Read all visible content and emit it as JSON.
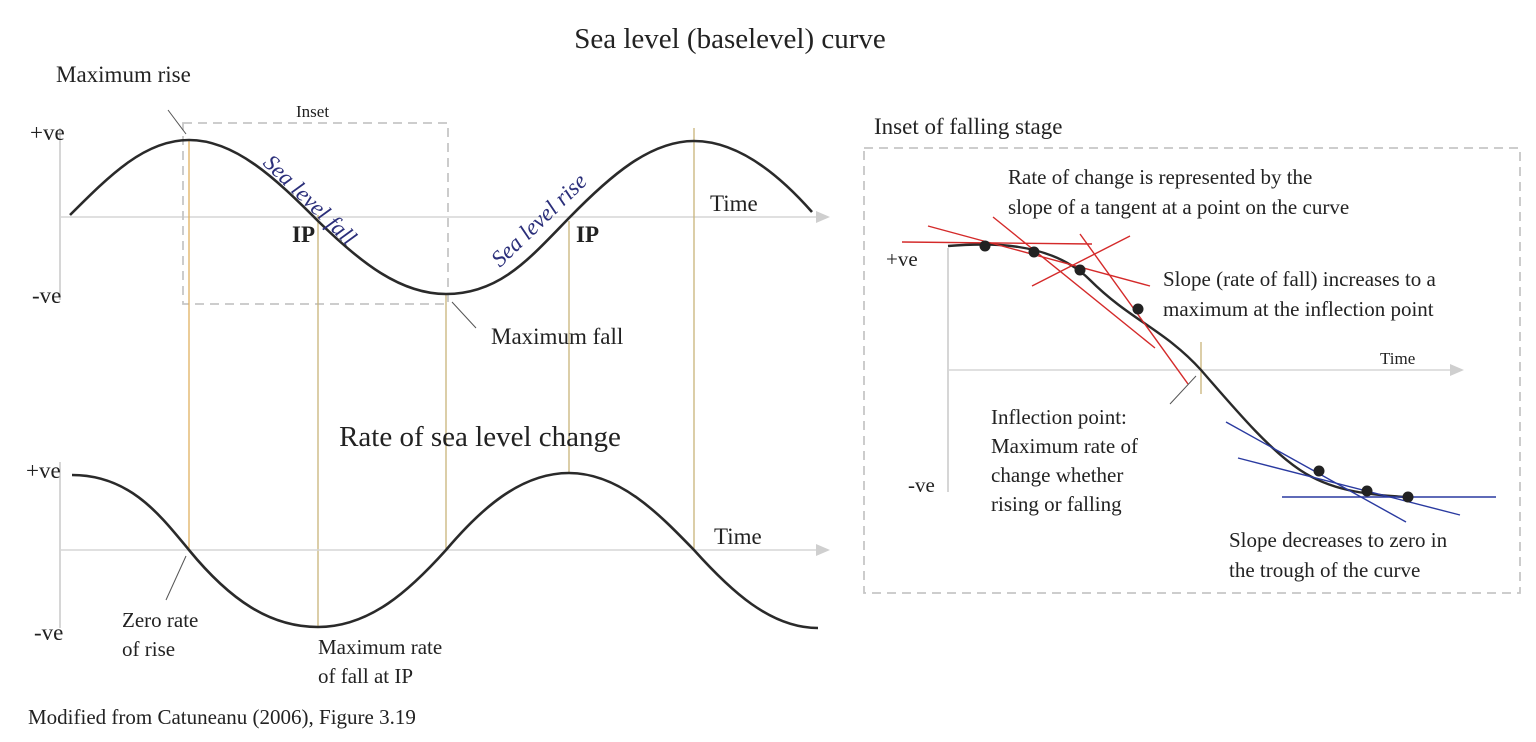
{
  "title": "Sea level (baselevel) curve",
  "top_chart": {
    "y_pos": "+ve",
    "y_neg": "-ve",
    "x_label": "Time",
    "inset_label": "Inset",
    "max_rise": "Maximum rise",
    "max_fall": "Maximum fall",
    "fall_label": "Sea level fall",
    "rise_label": "Sea level rise",
    "ip1": "IP",
    "ip2": "IP"
  },
  "bottom_chart": {
    "title": "Rate of sea level change",
    "y_pos": "+ve",
    "y_neg": "-ve",
    "x_label": "Time",
    "zero_rate": [
      "Zero rate",
      "of rise"
    ],
    "max_rate": [
      "Maximum rate",
      "of fall at IP"
    ]
  },
  "inset": {
    "title": "Inset of falling stage",
    "y_pos": "+ve",
    "y_neg": "-ve",
    "x_label": "Time",
    "rate_note": [
      "Rate of change is represented by the",
      "slope of a tangent at a point on the curve"
    ],
    "slope_increase": [
      "Slope (rate of fall) increases to a",
      "maximum at the inflection point"
    ],
    "inflection": [
      "Inflection point:",
      "Maximum rate of",
      "change whether",
      "rising or falling"
    ],
    "slope_decrease": [
      "Slope decreases to zero in",
      "the trough of the curve"
    ]
  },
  "credit": "Modified from Catuneanu (2006), Figure 3.19",
  "colors": {
    "curve": "#2a2a2a",
    "axis": "#c9c9c9",
    "guide": "#c8b47a",
    "tangent_red": "#d42a2a",
    "tangent_blue": "#2a3aa0",
    "label_blue": "#2b2f7a",
    "dash": "#c6c6c6"
  }
}
